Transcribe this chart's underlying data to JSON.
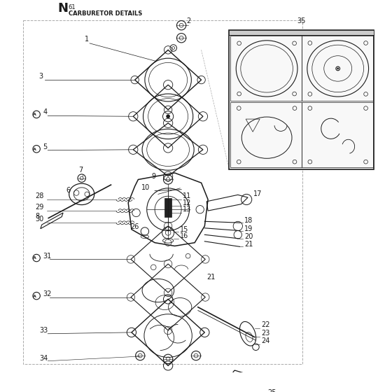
{
  "title": "N",
  "subtitle_num": "61",
  "subtitle": "CARBURETOR DETAILS",
  "bg_color": "#ffffff",
  "line_color": "#1a1a1a",
  "dashed_color": "#aaaaaa",
  "fig_width": 5.6,
  "fig_height": 5.6,
  "dpi": 100
}
